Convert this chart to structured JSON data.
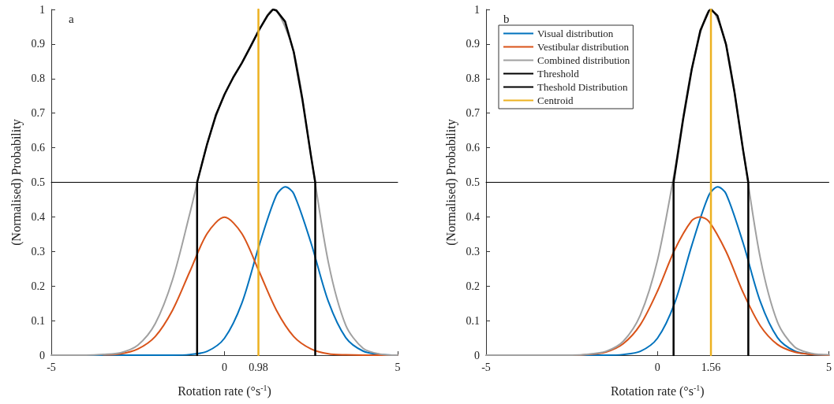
{
  "chart_data": [
    {
      "type": "line",
      "xlabel": "Rotation rate (°s$^{-1}$)",
      "ylabel": "(Normalised) Probability",
      "annotations": [
        "a"
      ],
      "xlim": [
        -5,
        5
      ],
      "xticks": [
        -5,
        0,
        0.98,
        5
      ],
      "ylim": [
        0,
        1
      ],
      "yticks": [
        0,
        0.1,
        0.2,
        0.3,
        0.4,
        0.5,
        0.6,
        0.7,
        0.8,
        0.9,
        1
      ],
      "grid": false,
      "legend": false,
      "marker": "none",
      "line_style": "solid",
      "series": [
        {
          "color": "#0072bd",
          "x": [
            -4,
            -3.5,
            -3,
            -2.5,
            -2,
            -1.5,
            -1,
            -0.5,
            0,
            0.5,
            1,
            1.5,
            1.76,
            2,
            2.5,
            3,
            3.5,
            4,
            4.5,
            5
          ],
          "values": [
            0,
            0,
            0,
            0,
            0,
            0,
            0.002,
            0.011,
            0.049,
            0.15,
            0.317,
            0.463,
            0.487,
            0.467,
            0.324,
            0.155,
            0.051,
            0.012,
            0.002,
            0
          ]
        },
        {
          "color": "#d95319",
          "x": [
            -3.5,
            -3,
            -2.5,
            -2,
            -1.5,
            -1,
            -0.5,
            0,
            0.5,
            1,
            1.5,
            2,
            2.5,
            3,
            3.5,
            4,
            4.5,
            5
          ],
          "values": [
            0.001,
            0.004,
            0.018,
            0.054,
            0.13,
            0.242,
            0.352,
            0.399,
            0.352,
            0.242,
            0.13,
            0.054,
            0.018,
            0.004,
            0.001,
            0,
            0,
            0
          ]
        },
        {
          "color": "#a0a0a0",
          "x": [
            -5,
            -4.5,
            -4,
            -3.5,
            -3,
            -2.5,
            -2,
            -1.5,
            -1,
            -0.5,
            0,
            0.5,
            1,
            1.4,
            2,
            2.5,
            3,
            3.5,
            4,
            4.5,
            5
          ],
          "values": [
            0,
            0,
            0,
            0.002,
            0.007,
            0.029,
            0.091,
            0.218,
            0.41,
            0.611,
            0.754,
            0.845,
            0.941,
            1,
            0.877,
            0.575,
            0.268,
            0.087,
            0.02,
            0.003,
            0
          ]
        },
        {
          "color": "#000000",
          "x": [
            -5,
            5
          ],
          "values": [
            0.5,
            0.5
          ]
        },
        {
          "color": "#000000",
          "x": [
            -0.79,
            -0.79,
            -0.5,
            -0.25,
            0,
            0.25,
            0.5,
            0.75,
            1,
            1.25,
            1.4,
            1.5,
            1.75,
            2,
            2.25,
            2.5,
            2.62,
            2.62
          ],
          "values": [
            0,
            0.5,
            0.611,
            0.694,
            0.754,
            0.803,
            0.845,
            0.892,
            0.941,
            0.983,
            1,
            0.997,
            0.965,
            0.877,
            0.739,
            0.575,
            0.5,
            0
          ]
        },
        {
          "color": "#edb120",
          "x": [
            0.98,
            0.98
          ],
          "values": [
            0,
            1
          ]
        }
      ]
    },
    {
      "type": "line",
      "xlabel": "Rotation rate (°s$^{-1}$)",
      "ylabel": "(Normalised) Probability",
      "annotations": [
        "b"
      ],
      "xlim": [
        -5,
        5
      ],
      "xticks": [
        -5,
        0,
        1.56,
        5
      ],
      "ylim": [
        0,
        1
      ],
      "yticks": [
        0,
        0.1,
        0.2,
        0.3,
        0.4,
        0.5,
        0.6,
        0.7,
        0.8,
        0.9,
        1
      ],
      "grid": false,
      "legend": "top left",
      "marker": "none",
      "line_style": "solid",
      "series": [
        {
          "name": "Visual distribution",
          "color": "#0072bd",
          "x": [
            -2.5,
            -2,
            -1.5,
            -1,
            -0.5,
            0,
            0.5,
            1,
            1.5,
            1.76,
            2,
            2.5,
            3,
            3.5,
            4,
            4.5,
            5
          ],
          "values": [
            0,
            0,
            0,
            0.002,
            0.011,
            0.049,
            0.15,
            0.317,
            0.463,
            0.487,
            0.467,
            0.324,
            0.155,
            0.051,
            0.012,
            0.002,
            0
          ]
        },
        {
          "name": "Vestibular distribution",
          "color": "#d95319",
          "x": [
            -3,
            -2.5,
            -2,
            -1.5,
            -1,
            -0.5,
            0,
            0.5,
            1,
            1.24,
            1.5,
            2,
            2.5,
            3,
            3.5,
            4,
            4.5,
            5
          ],
          "values": [
            0,
            0,
            0.002,
            0.009,
            0.033,
            0.088,
            0.185,
            0.304,
            0.389,
            0.4,
            0.387,
            0.3,
            0.181,
            0.085,
            0.031,
            0.009,
            0.002,
            0
          ]
        },
        {
          "name": "Combined distribution",
          "color": "#a0a0a0",
          "x": [
            -5,
            -4.5,
            -4,
            -3.5,
            -3,
            -2.5,
            -2,
            -1.5,
            -1,
            -0.5,
            0,
            0.5,
            1,
            1.56,
            2,
            2.5,
            3,
            3.5,
            4,
            4.5,
            5
          ],
          "values": [
            0,
            0,
            0,
            0,
            0,
            0,
            0.003,
            0.011,
            0.04,
            0.116,
            0.274,
            0.532,
            0.827,
            1,
            0.899,
            0.592,
            0.281,
            0.096,
            0.024,
            0.005,
            0.001
          ]
        },
        {
          "name": "Threshold",
          "color": "#000000",
          "x": [
            -5,
            5
          ],
          "values": [
            0.5,
            0.5
          ]
        },
        {
          "name": "Theshold Distribution",
          "color": "#000000",
          "x": [
            0.47,
            0.47,
            0.75,
            1,
            1.25,
            1.5,
            1.56,
            1.75,
            2,
            2.25,
            2.5,
            2.65,
            2.65
          ],
          "values": [
            0,
            0.5,
            0.683,
            0.827,
            0.939,
            0.996,
            1,
            0.982,
            0.899,
            0.759,
            0.592,
            0.5,
            0
          ]
        },
        {
          "name": "Centroid",
          "color": "#edb120",
          "x": [
            1.56,
            1.56
          ],
          "values": [
            0,
            1
          ]
        }
      ]
    }
  ]
}
